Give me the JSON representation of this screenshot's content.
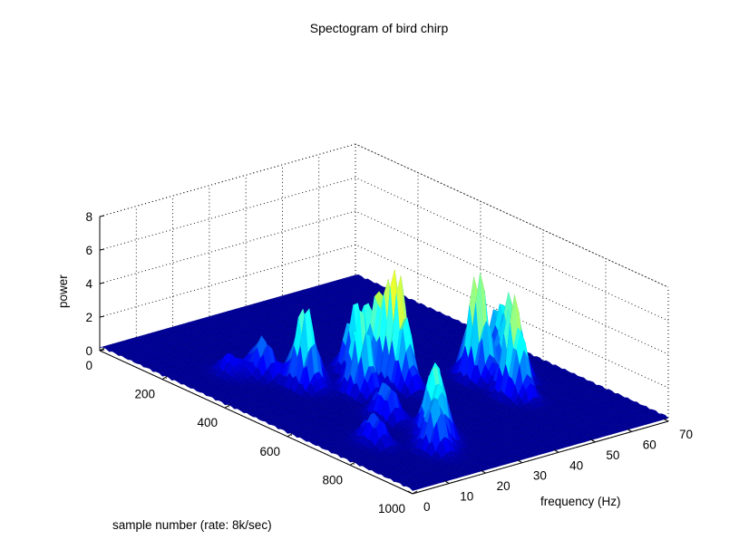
{
  "chart_data": {
    "type": "surface",
    "title": "Spectogram of bird chirp",
    "xlabel": "sample number (rate: 8k/sec)",
    "ylabel": "frequency (Hz)",
    "zlabel": "power",
    "xlim": [
      0,
      1000
    ],
    "ylim": [
      0,
      70
    ],
    "zlim": [
      0,
      8
    ],
    "x_ticks": [
      "0",
      "200",
      "400",
      "600",
      "800",
      "1000"
    ],
    "y_ticks": [
      "0",
      "10",
      "20",
      "30",
      "40",
      "50",
      "60",
      "70"
    ],
    "z_ticks": [
      "0",
      "2",
      "4",
      "6",
      "8"
    ],
    "grid": true,
    "colormap": [
      "#00008F",
      "#0000FF",
      "#0080FF",
      "#00FFFF",
      "#80FF80",
      "#FFFF00",
      "#FF8000",
      "#FF0000"
    ],
    "peaks": [
      {
        "x": 280,
        "y": 12,
        "z": 1.3
      },
      {
        "x": 320,
        "y": 17,
        "z": 2.6
      },
      {
        "x": 380,
        "y": 24,
        "z": 3.4
      },
      {
        "x": 420,
        "y": 20,
        "z": 5.2
      },
      {
        "x": 430,
        "y": 33,
        "z": 4.2
      },
      {
        "x": 480,
        "y": 36,
        "z": 5.6
      },
      {
        "x": 540,
        "y": 36,
        "z": 6.3
      },
      {
        "x": 520,
        "y": 27,
        "z": 5.2
      },
      {
        "x": 600,
        "y": 52,
        "z": 6.8
      },
      {
        "x": 720,
        "y": 52,
        "z": 6.3
      },
      {
        "x": 640,
        "y": 58,
        "z": 5.6
      },
      {
        "x": 560,
        "y": 62,
        "z": 4.2
      },
      {
        "x": 660,
        "y": 22,
        "z": 2.6
      },
      {
        "x": 780,
        "y": 25,
        "z": 3.8
      },
      {
        "x": 820,
        "y": 22,
        "z": 4.4
      },
      {
        "x": 750,
        "y": 11,
        "z": 2.1
      },
      {
        "x": 860,
        "y": 18,
        "z": 3.1
      }
    ]
  }
}
